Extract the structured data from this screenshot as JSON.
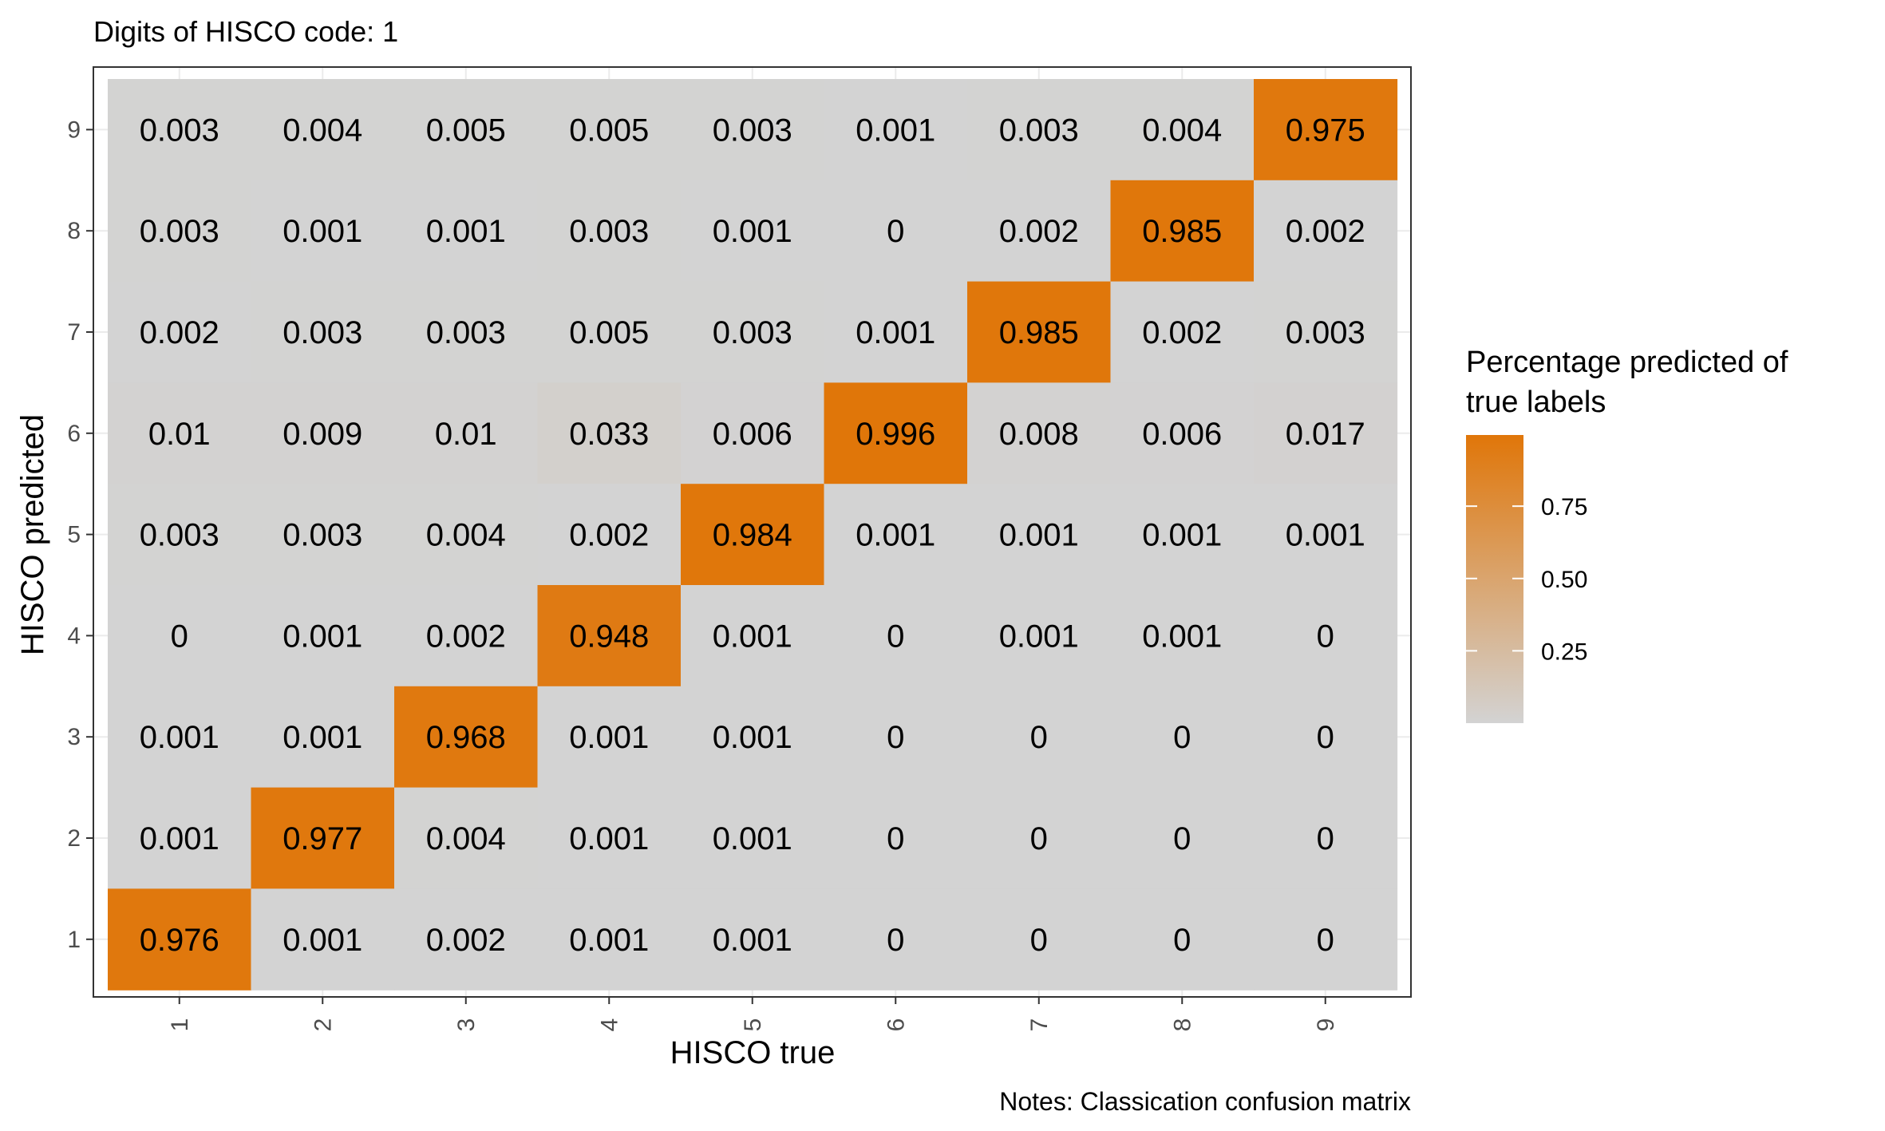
{
  "chart_data": {
    "type": "heatmap",
    "title": "Digits of HISCO code: 1",
    "xlabel": "HISCO true",
    "ylabel": "HISCO predicted",
    "caption": "Notes: Classication confusion matrix",
    "x_categories": [
      "1",
      "2",
      "3",
      "4",
      "5",
      "6",
      "7",
      "8",
      "9"
    ],
    "y_categories": [
      "1",
      "2",
      "3",
      "4",
      "5",
      "6",
      "7",
      "8",
      "9"
    ],
    "values_by_predicted_row_top_to_bottom": [
      {
        "predicted": "9",
        "cells": [
          "0.003",
          "0.004",
          "0.005",
          "0.005",
          "0.003",
          "0.001",
          "0.003",
          "0.004",
          "0.975"
        ]
      },
      {
        "predicted": "8",
        "cells": [
          "0.003",
          "0.001",
          "0.001",
          "0.003",
          "0.001",
          "0",
          "0.002",
          "0.985",
          "0.002"
        ]
      },
      {
        "predicted": "7",
        "cells": [
          "0.002",
          "0.003",
          "0.003",
          "0.005",
          "0.003",
          "0.001",
          "0.985",
          "0.002",
          "0.003"
        ]
      },
      {
        "predicted": "6",
        "cells": [
          "0.01",
          "0.009",
          "0.01",
          "0.033",
          "0.006",
          "0.996",
          "0.008",
          "0.006",
          "0.017"
        ]
      },
      {
        "predicted": "5",
        "cells": [
          "0.003",
          "0.003",
          "0.004",
          "0.002",
          "0.984",
          "0.001",
          "0.001",
          "0.001",
          "0.001"
        ]
      },
      {
        "predicted": "4",
        "cells": [
          "0",
          "0.001",
          "0.002",
          "0.948",
          "0.001",
          "0",
          "0.001",
          "0.001",
          "0"
        ]
      },
      {
        "predicted": "3",
        "cells": [
          "0.001",
          "0.001",
          "0.968",
          "0.001",
          "0.001",
          "0",
          "0",
          "0",
          "0"
        ]
      },
      {
        "predicted": "2",
        "cells": [
          "0.001",
          "0.977",
          "0.004",
          "0.001",
          "0.001",
          "0",
          "0",
          "0",
          "0"
        ]
      },
      {
        "predicted": "1",
        "cells": [
          "0.976",
          "0.001",
          "0.002",
          "0.001",
          "0.001",
          "0",
          "0",
          "0",
          "0"
        ]
      }
    ],
    "color_scale": {
      "low_color": "#D3D3D3",
      "high_color": "#E07609",
      "domain": [
        0,
        0.996
      ]
    },
    "legend": {
      "title_lines": [
        "Percentage predicted of",
        "true labels"
      ],
      "ticks": [
        {
          "value": 0.25,
          "label": "0.25"
        },
        {
          "value": 0.5,
          "label": "0.50"
        },
        {
          "value": 0.75,
          "label": "0.75"
        }
      ],
      "position": "right"
    },
    "grid": true
  }
}
